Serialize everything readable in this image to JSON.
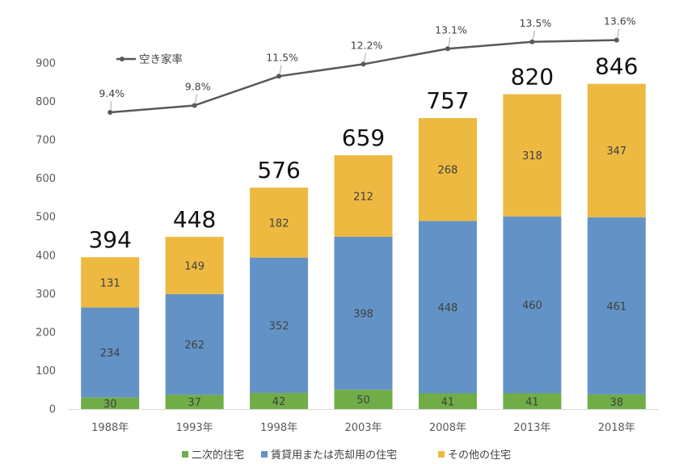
{
  "chart_data": {
    "type": "bar",
    "stacked": true,
    "categories": [
      "1988年",
      "1993年",
      "1998年",
      "2003年",
      "2008年",
      "2013年",
      "2018年"
    ],
    "series": [
      {
        "name": "二次的住宅",
        "values": [
          30,
          37,
          42,
          50,
          41,
          41,
          38
        ],
        "color": "#70ad47"
      },
      {
        "name": "賃貸用または売却用の住宅",
        "values": [
          234,
          262,
          352,
          398,
          448,
          460,
          461
        ],
        "color": "#6393c6"
      },
      {
        "name": "その他の住宅",
        "values": [
          131,
          149,
          182,
          212,
          268,
          318,
          347
        ],
        "color": "#edb941"
      }
    ],
    "totals": [
      394,
      448,
      576,
      659,
      757,
      820,
      846
    ],
    "line_series": {
      "name": "空き家率",
      "values": [
        9.4,
        9.8,
        11.5,
        12.2,
        13.1,
        13.5,
        13.6
      ],
      "labels": [
        "9.4%",
        "9.8%",
        "11.5%",
        "12.2%",
        "13.1%",
        "13.5%",
        "13.6%"
      ],
      "color": "#595959"
    },
    "y_ticks": [
      "0",
      "100",
      "200",
      "300",
      "400",
      "500",
      "600",
      "700",
      "800",
      "900"
    ],
    "ylim": [
      0,
      900
    ],
    "grid": false,
    "legend": "bottom"
  }
}
